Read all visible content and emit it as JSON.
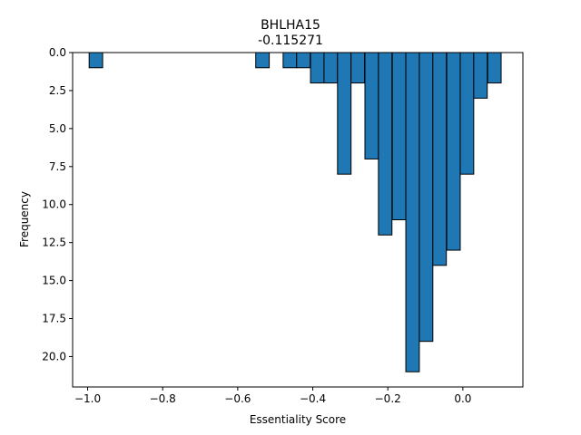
{
  "chart_data": {
    "type": "bar",
    "title": "BHLHA15",
    "subtitle": "-0.115271",
    "xlabel": "Essentiality Score",
    "ylabel": "Frequency",
    "xlim": [
      -1.04,
      0.16
    ],
    "ylim": [
      22,
      0
    ],
    "y_inverted": true,
    "bin_width": 0.036,
    "x_ticks": [
      -1.0,
      -0.8,
      -0.6,
      -0.4,
      -0.2,
      0.0
    ],
    "x_tick_labels": [
      "−1.0",
      "−0.8",
      "−0.6",
      "−0.4",
      "−0.2",
      "0.0"
    ],
    "y_ticks": [
      0.0,
      2.5,
      5.0,
      7.5,
      10.0,
      12.5,
      15.0,
      17.5,
      20.0
    ],
    "y_tick_labels": [
      "0.0",
      "2.5",
      "5.0",
      "7.5",
      "10.0",
      "12.5",
      "15.0",
      "17.5",
      "20.0"
    ],
    "bars": [
      {
        "x": -0.978,
        "value": 1
      },
      {
        "x": -0.534,
        "value": 1
      },
      {
        "x": -0.461,
        "value": 1
      },
      {
        "x": -0.425,
        "value": 1
      },
      {
        "x": -0.388,
        "value": 2
      },
      {
        "x": -0.352,
        "value": 2
      },
      {
        "x": -0.316,
        "value": 8
      },
      {
        "x": -0.28,
        "value": 2
      },
      {
        "x": -0.243,
        "value": 7
      },
      {
        "x": -0.207,
        "value": 12
      },
      {
        "x": -0.17,
        "value": 11
      },
      {
        "x": -0.134,
        "value": 21
      },
      {
        "x": -0.098,
        "value": 19
      },
      {
        "x": -0.062,
        "value": 14
      },
      {
        "x": -0.025,
        "value": 13
      },
      {
        "x": 0.011,
        "value": 8
      },
      {
        "x": 0.047,
        "value": 3
      },
      {
        "x": 0.084,
        "value": 2
      }
    ],
    "grid": false,
    "legend": "none",
    "colors": {
      "bar_fill": "#1f77b4",
      "bar_edge": "#000000"
    }
  }
}
